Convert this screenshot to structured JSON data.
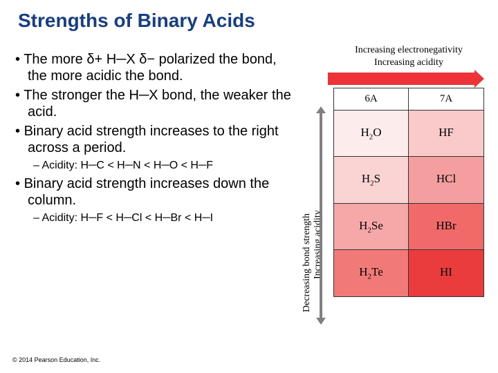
{
  "title": {
    "text": "Strengths of Binary Acids",
    "color": "#163f83"
  },
  "bullets": {
    "b1": "The more δ+ H─X δ− polarized the bond, the more acidic the bond.",
    "b2": "The stronger the H─X bond, the weaker the acid.",
    "b3": "Binary acid strength increases to the right across a period.",
    "b3sub": "Acidity: H─C < H─N < H─O < H─F",
    "b4": "Binary acid strength increases down the column.",
    "b4sub": "Acidity: H─F < H─Cl < H─Br < H─I"
  },
  "figure": {
    "topLabel1": "Increasing electronegativity",
    "topLabel2": "Increasing acidity",
    "topArrowColor": "#ee3338",
    "vertLabel1": "Decreasing bond strength",
    "vertLabel2": "Increasing acidity",
    "vertArrowColor": "#808080",
    "header": {
      "col1": "6A",
      "col2": "7A"
    },
    "rows": [
      {
        "left": "H₂O",
        "right": "HF",
        "leftColor": "#fdecec",
        "rightColor": "#fac9ca"
      },
      {
        "left": "H₂S",
        "right": "HCl",
        "leftColor": "#fad3d3",
        "rightColor": "#f59e9f"
      },
      {
        "left": "H₂Se",
        "right": "HBr",
        "leftColor": "#f6a7a8",
        "rightColor": "#f06a6a"
      },
      {
        "left": "H₂Te",
        "right": "HI",
        "leftColor": "#f17978",
        "rightColor": "#eb3c3d"
      }
    ]
  },
  "copyright": "© 2014 Pearson Education, Inc."
}
